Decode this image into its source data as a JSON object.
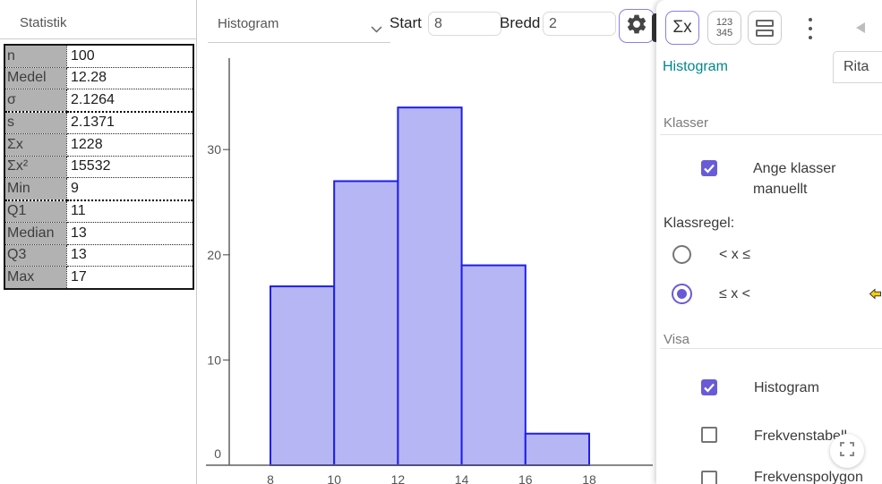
{
  "left_panel": {
    "title": "Statistik",
    "rows": [
      {
        "label": "n",
        "value": "100"
      },
      {
        "label": "Medel",
        "value": "12.28"
      },
      {
        "label": "σ",
        "value": "2.1264",
        "thick": true
      },
      {
        "label": "s",
        "value": "2.1371"
      },
      {
        "label": "Σx",
        "value": "1228"
      },
      {
        "label": "Σx²",
        "value": "15532"
      },
      {
        "label": "Min",
        "value": "9",
        "thick": true
      },
      {
        "label": "Q1",
        "value": "11"
      },
      {
        "label": "Median",
        "value": "13"
      },
      {
        "label": "Q3",
        "value": "13"
      },
      {
        "label": "Max",
        "value": "17"
      }
    ]
  },
  "toolbar": {
    "plot_type": "Histogram",
    "start_label": "Start",
    "start_value": "8",
    "width_label": "Bredd",
    "width_value": "2"
  },
  "right_toolbar": {
    "sum_button": "Σx",
    "num_button_line1": "123",
    "num_button_line2": "345"
  },
  "options_panel": {
    "tab_histogram": "Histogram",
    "tab_rita": "Rita",
    "klasser_header": "Klasser",
    "ange_klasser_label": "Ange klasser manuellt",
    "klassregel_label": "Klassregel:",
    "rule_option1": "< x ≤",
    "rule_option2": "≤ x <",
    "visa_header": "Visa",
    "show_histogram_label": "Histogram",
    "show_frekvenstabell_label": "Frekvenstabell",
    "show_frekvenspolygon_label": "Frekvenspolygon"
  },
  "colors": {
    "accent_purple": "#685bd7",
    "tab_teal": "#00878a",
    "bar_fill": "#b6b6f5",
    "bar_stroke": "#1e1eea"
  },
  "chart_data": {
    "type": "bar",
    "histogram": true,
    "title": "",
    "xlabel": "",
    "ylabel": "",
    "start": 8,
    "class_width": 2,
    "classes": [
      "8–10",
      "10–12",
      "12–14",
      "14–16",
      "16–18"
    ],
    "values": [
      17,
      27,
      34,
      19,
      3
    ],
    "x_ticks": [
      8,
      10,
      12,
      14,
      16,
      18
    ],
    "y_ticks": [
      0,
      10,
      20,
      30
    ],
    "ylim": [
      0,
      38.5
    ],
    "grid": false,
    "legend": false,
    "bar_fill": "#b6b6f5",
    "bar_stroke": "#1e1eea"
  }
}
